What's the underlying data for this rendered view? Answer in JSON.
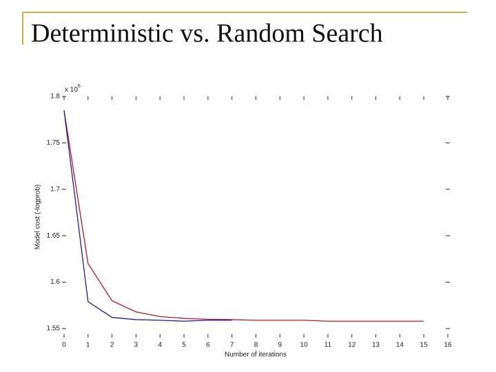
{
  "slide_title": "Deterministic vs. Random Search",
  "chart_data": {
    "type": "line",
    "x_label": "Number of iterations",
    "y_label": "Model cost (-logprob)",
    "y_multiplier": {
      "base": "x 10",
      "exponent": "6"
    },
    "x": [
      0,
      1,
      2,
      3,
      4,
      5,
      6,
      7,
      8,
      9,
      10,
      11,
      12,
      13,
      14,
      15
    ],
    "series": [
      {
        "color": "#c8141e",
        "values": [
          1.785,
          1.62,
          1.58,
          1.568,
          1.563,
          1.561,
          1.56,
          1.5597,
          1.559,
          1.559,
          1.559,
          1.558,
          1.558,
          1.558,
          1.558,
          1.558
        ]
      },
      {
        "color": "#1a1aa8",
        "values": [
          1.785,
          1.579,
          1.562,
          1.5597,
          1.559,
          1.558,
          1.559,
          1.559,
          null,
          null,
          null,
          null,
          null,
          null,
          null,
          null
        ]
      }
    ],
    "xlim": [
      0,
      16
    ],
    "xticks": [
      0,
      1,
      2,
      3,
      4,
      5,
      6,
      7,
      8,
      9,
      10,
      11,
      12,
      13,
      14,
      15,
      16
    ],
    "ylim": [
      1.55,
      1.8
    ],
    "yticks": [
      1.55,
      1.6,
      1.65,
      1.7,
      1.75,
      1.8
    ]
  }
}
